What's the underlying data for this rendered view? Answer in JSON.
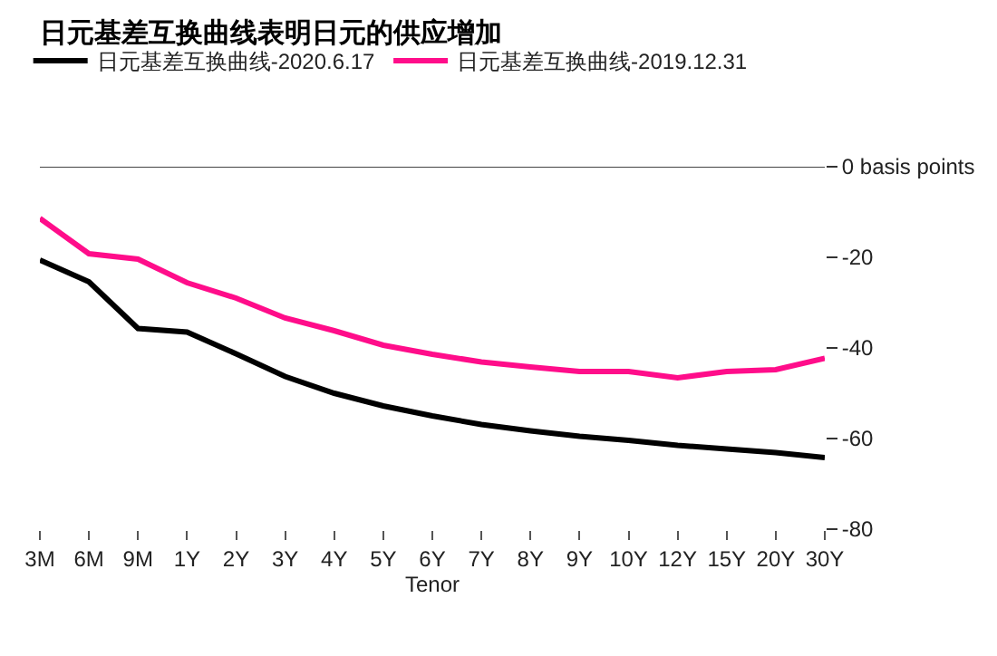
{
  "chart_data": {
    "type": "line",
    "title": "日元基差互换曲线表明日元的供应增加",
    "xlabel": "Tenor",
    "categories": [
      "3M",
      "6M",
      "9M",
      "1Y",
      "2Y",
      "3Y",
      "4Y",
      "5Y",
      "6Y",
      "7Y",
      "8Y",
      "9Y",
      "10Y",
      "12Y",
      "15Y",
      "20Y",
      "30Y"
    ],
    "series": [
      {
        "name": "日元基差互换曲线-2020.6.17",
        "color": "#000000",
        "values": [
          -20.6,
          -25.4,
          -35.7,
          -36.5,
          -41.3,
          -46.3,
          -50,
          -52.8,
          -55,
          -56.9,
          -58.3,
          -59.5,
          -60.4,
          -61.5,
          -62.3,
          -63.1,
          -64.2
        ]
      },
      {
        "name": "日元基差互换曲线-2019.12.31",
        "color": "#ff0d8a",
        "values": [
          -11.4,
          -19.2,
          -20.4,
          -25.6,
          -29,
          -33.4,
          -36.2,
          -39.4,
          -41.4,
          -43.1,
          -44.2,
          -45.2,
          -45.2,
          -46.6,
          -45.2,
          -44.8,
          -42.3
        ]
      }
    ],
    "ylim": [
      -80,
      0
    ],
    "yticks": [
      {
        "value": 0,
        "label": "0 basis points"
      },
      -20,
      -40,
      -60,
      -80
    ],
    "ref_lines": [
      {
        "axis": "y",
        "value": 0,
        "color": "#444444"
      }
    ],
    "legend": "top left",
    "marker": "none",
    "line_style": "solid"
  }
}
